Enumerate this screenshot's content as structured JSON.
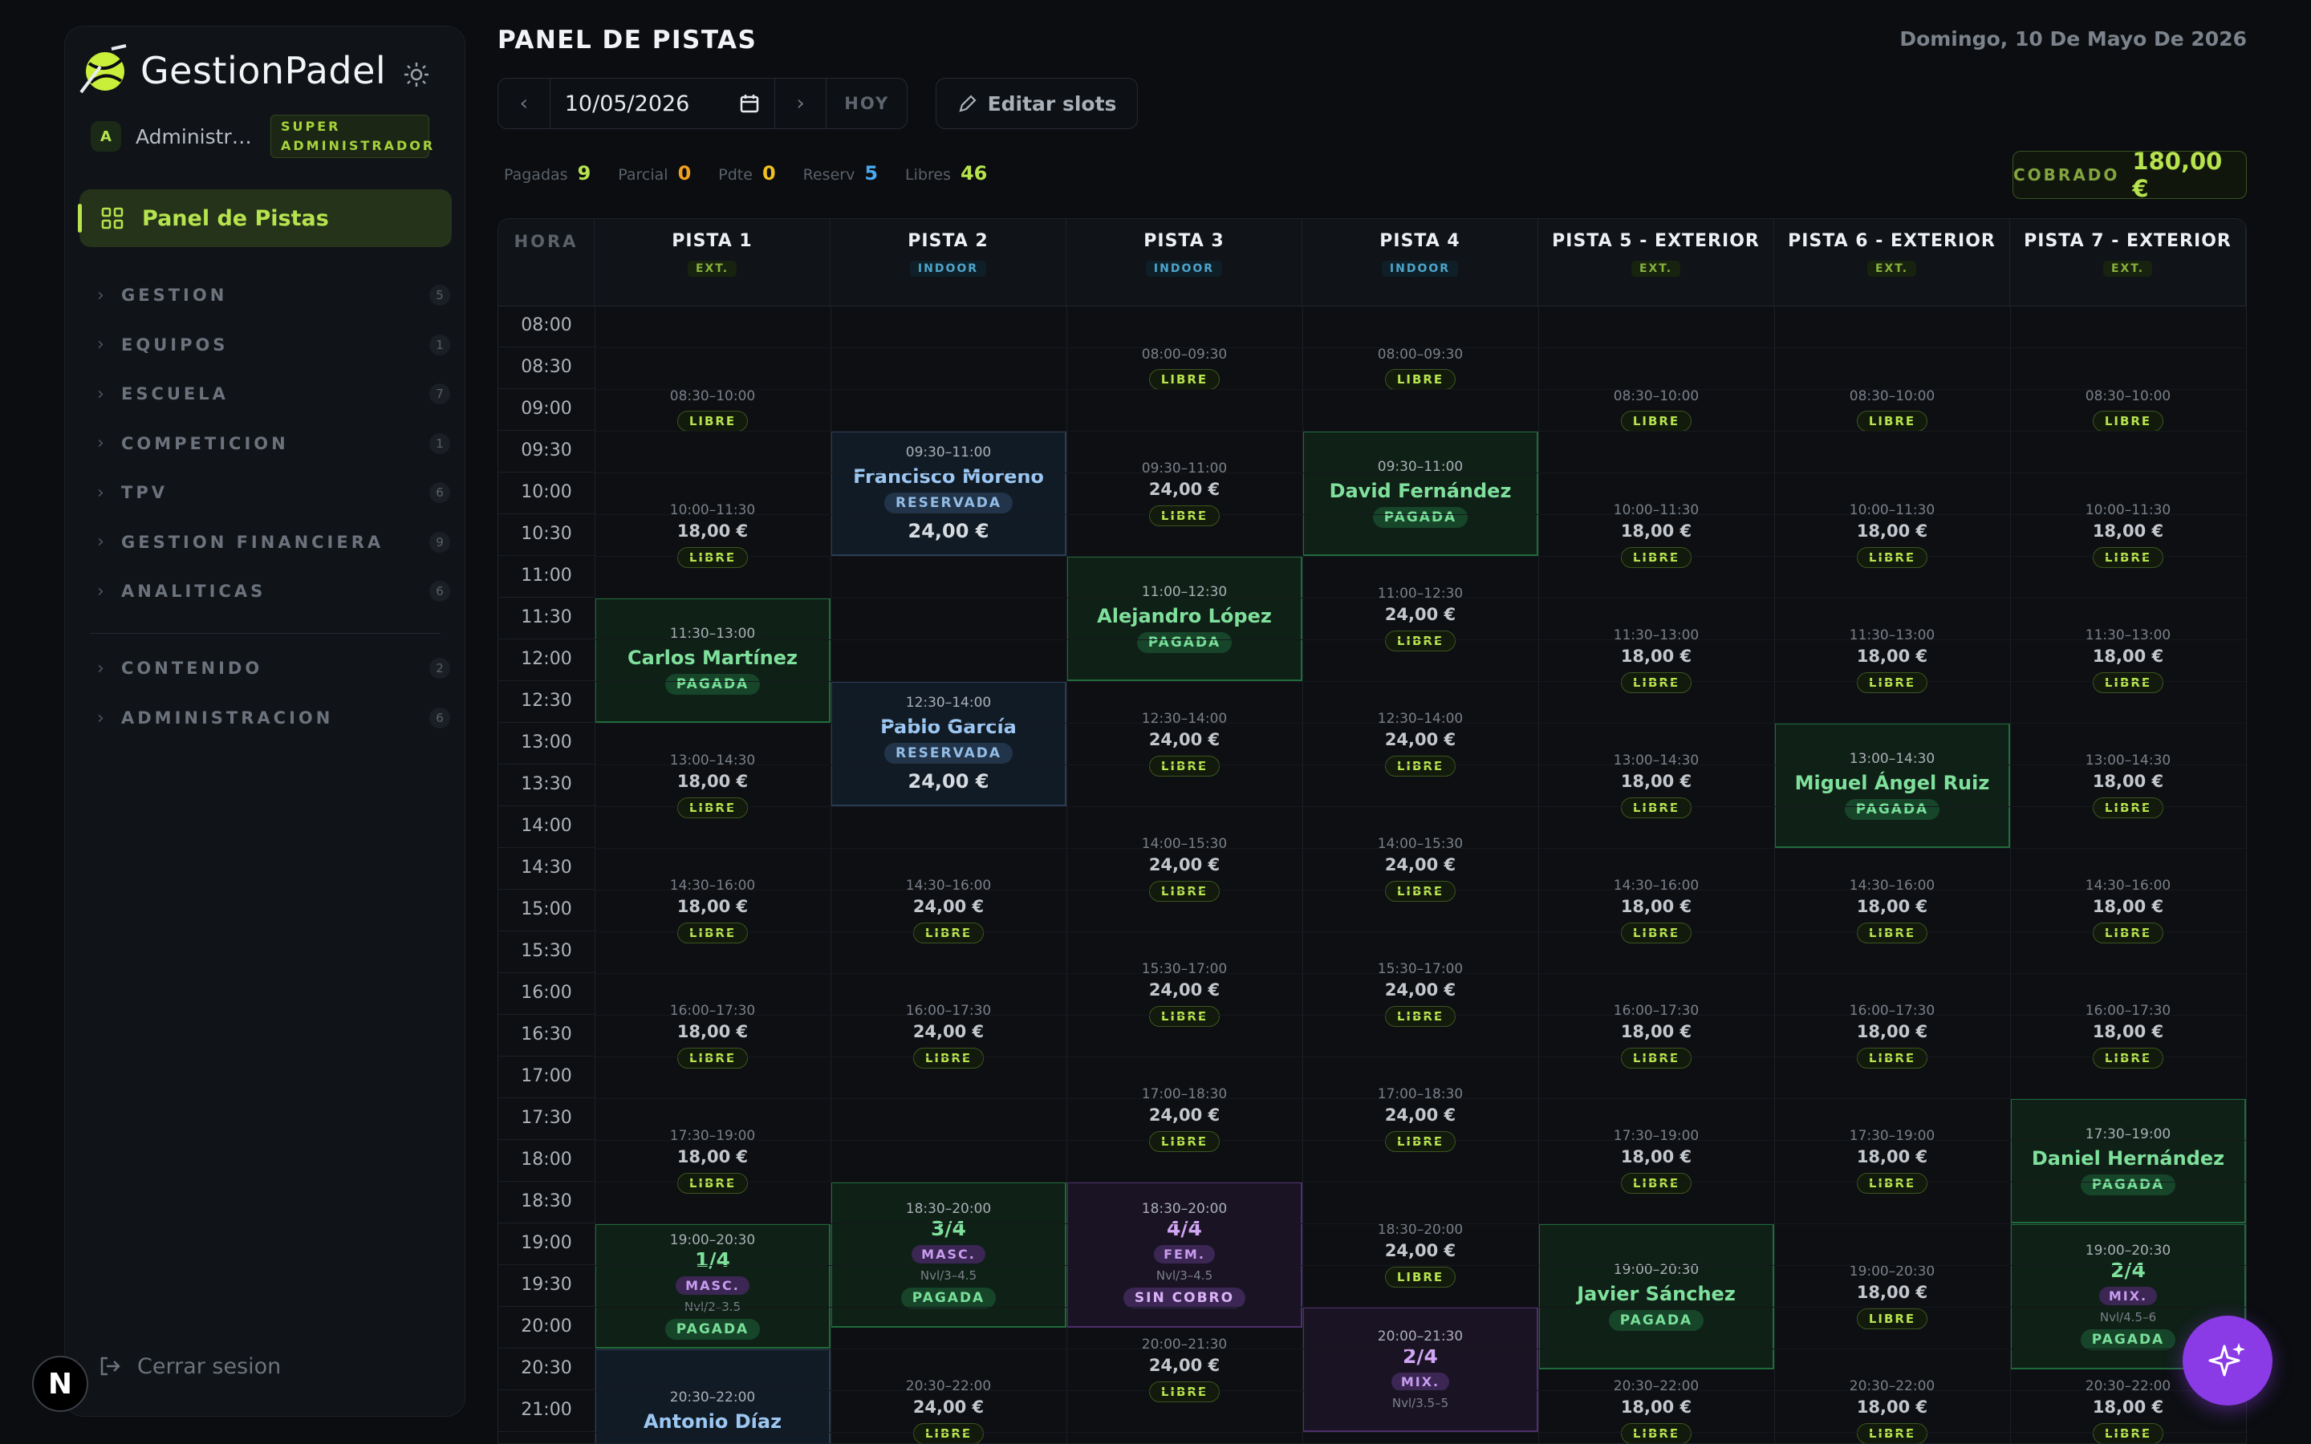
{
  "sidebar": {
    "brand": "GestionPadel",
    "user_initial": "A",
    "user_name": "Administrador",
    "role": "SUPER ADMINISTRADOR",
    "active_item": "Panel de Pistas",
    "groups": [
      {
        "label": "GESTION",
        "count": "5"
      },
      {
        "label": "EQUIPOS",
        "count": "1"
      },
      {
        "label": "ESCUELA",
        "count": "7"
      },
      {
        "label": "COMPETICION",
        "count": "1"
      },
      {
        "label": "TPV",
        "count": "6"
      },
      {
        "label": "GESTION FINANCIERA",
        "count": "9"
      },
      {
        "label": "ANALITICAS",
        "count": "6"
      }
    ],
    "groups2": [
      {
        "label": "CONTENIDO",
        "count": "2"
      },
      {
        "label": "ADMINISTRACION",
        "count": "6"
      }
    ],
    "logout": "Cerrar sesion",
    "n_badge": "N"
  },
  "header": {
    "title": "PANEL DE PISTAS",
    "date_long": "Domingo, 10 De Mayo De 2026",
    "date_value": "10/05/2026",
    "today": "HOY",
    "edit_slots": "Editar slots"
  },
  "stats": [
    {
      "label": "Pagadas",
      "value": "9",
      "color": "#b6e34e"
    },
    {
      "label": "Parcial",
      "value": "0",
      "color": "#f0a020"
    },
    {
      "label": "Pdte",
      "value": "0",
      "color": "#f0c020"
    },
    {
      "label": "Reserv",
      "value": "5",
      "color": "#4aa8f0"
    },
    {
      "label": "Libres",
      "value": "46",
      "color": "#b6e34e"
    }
  ],
  "cobrado": {
    "label": "COBRADO",
    "value": "180,00 €"
  },
  "grid": {
    "hora_label": "HORA",
    "courts": [
      {
        "name": "PISTA 1",
        "type": "EXT."
      },
      {
        "name": "PISTA 2",
        "type": "INDOOR"
      },
      {
        "name": "PISTA 3",
        "type": "INDOOR"
      },
      {
        "name": "PISTA 4",
        "type": "INDOOR"
      },
      {
        "name": "PISTA 5 - EXTERIOR",
        "type": "EXT."
      },
      {
        "name": "PISTA 6 - EXTERIOR",
        "type": "EXT."
      },
      {
        "name": "PISTA 7 - EXTERIOR",
        "type": "EXT."
      }
    ],
    "times": [
      "08:00",
      "08:30",
      "09:00",
      "09:30",
      "10:00",
      "10:30",
      "11:00",
      "11:30",
      "12:00",
      "12:30",
      "13:00",
      "13:30",
      "14:00",
      "14:30",
      "15:00",
      "15:30",
      "16:00",
      "16:30",
      "17:00",
      "17:30",
      "18:00",
      "18:30",
      "19:00",
      "19:30",
      "20:00",
      "20:30",
      "21:00"
    ],
    "slots": [
      {
        "c": 0,
        "s": 1,
        "d": 3,
        "k": "libre",
        "tm": "08:30–10:00"
      },
      {
        "c": 0,
        "s": 4,
        "d": 3,
        "k": "libre",
        "tm": "10:00–11:30",
        "pr": "18,00 €"
      },
      {
        "c": 0,
        "s": 7,
        "d": 3,
        "k": "pagada",
        "tm": "11:30–13:00",
        "nm": "Carlos Martínez",
        "tag": "PAGADA"
      },
      {
        "c": 0,
        "s": 10,
        "d": 3,
        "k": "libre",
        "tm": "13:00–14:30",
        "pr": "18,00 €"
      },
      {
        "c": 0,
        "s": 13,
        "d": 3,
        "k": "libre",
        "tm": "14:30–16:00",
        "pr": "18,00 €"
      },
      {
        "c": 0,
        "s": 16,
        "d": 3,
        "k": "libre",
        "tm": "16:00–17:30",
        "pr": "18,00 €"
      },
      {
        "c": 0,
        "s": 19,
        "d": 3,
        "k": "libre",
        "tm": "17:30–19:00",
        "pr": "18,00 €"
      },
      {
        "c": 0,
        "s": 22,
        "d": 3,
        "k": "partido-g",
        "tm": "19:00–20:30",
        "sc": "1/4",
        "cat": "MASC.",
        "lv": "Nvl/2–3.5",
        "tag": "PAGADA"
      },
      {
        "c": 0,
        "s": 25,
        "d": 3,
        "k": "reserv",
        "tm": "20:30–22:00",
        "nm": "Antonio Díaz"
      },
      {
        "c": 1,
        "s": 3,
        "d": 3,
        "k": "reserv",
        "tm": "09:30–11:00",
        "nm": "Francisco Moreno",
        "tag": "RESERVADA",
        "amt": "24,00 €"
      },
      {
        "c": 1,
        "s": 9,
        "d": 3,
        "k": "reserv",
        "tm": "12:30–14:00",
        "nm": "Pablo García",
        "tag": "RESERVADA",
        "amt": "24,00 €"
      },
      {
        "c": 1,
        "s": 13,
        "d": 3,
        "k": "libre",
        "tm": "14:30–16:00",
        "pr": "24,00 €"
      },
      {
        "c": 1,
        "s": 16,
        "d": 3,
        "k": "libre",
        "tm": "16:00–17:30",
        "pr": "24,00 €"
      },
      {
        "c": 1,
        "s": 21,
        "d": 3.5,
        "k": "partido-g",
        "tm": "18:30–20:00",
        "sc": "3/4",
        "cat": "MASC.",
        "lv": "Nvl/3–4.5",
        "tag": "PAGADA"
      },
      {
        "c": 1,
        "s": 25,
        "d": 3,
        "k": "libre",
        "tm": "20:30–22:00",
        "pr": "24,00 €"
      },
      {
        "c": 2,
        "s": 0,
        "d": 3,
        "k": "libre",
        "tm": "08:00–09:30"
      },
      {
        "c": 2,
        "s": 3,
        "d": 3,
        "k": "libre",
        "tm": "09:30–11:00",
        "pr": "24,00 €"
      },
      {
        "c": 2,
        "s": 6,
        "d": 3,
        "k": "pagada",
        "tm": "11:00–12:30",
        "nm": "Alejandro López",
        "tag": "PAGADA"
      },
      {
        "c": 2,
        "s": 9,
        "d": 3,
        "k": "libre",
        "tm": "12:30–14:00",
        "pr": "24,00 €"
      },
      {
        "c": 2,
        "s": 12,
        "d": 3,
        "k": "libre",
        "tm": "14:00–15:30",
        "pr": "24,00 €"
      },
      {
        "c": 2,
        "s": 15,
        "d": 3,
        "k": "libre",
        "tm": "15:30–17:00",
        "pr": "24,00 €"
      },
      {
        "c": 2,
        "s": 18,
        "d": 3,
        "k": "libre",
        "tm": "17:00–18:30",
        "pr": "24,00 €"
      },
      {
        "c": 2,
        "s": 21,
        "d": 3.5,
        "k": "partido",
        "tm": "18:30–20:00",
        "sc": "4/4",
        "cat": "FEM.",
        "lv": "Nvl/3–4.5",
        "tag": "SIN COBRO"
      },
      {
        "c": 2,
        "s": 24,
        "d": 3,
        "k": "libre",
        "tm": "20:00–21:30",
        "pr": "24,00 €"
      },
      {
        "c": 3,
        "s": 0,
        "d": 3,
        "k": "libre",
        "tm": "08:00–09:30"
      },
      {
        "c": 3,
        "s": 3,
        "d": 3,
        "k": "pagada",
        "tm": "09:30–11:00",
        "nm": "David Fernández",
        "tag": "PAGADA"
      },
      {
        "c": 3,
        "s": 6,
        "d": 3,
        "k": "libre",
        "tm": "11:00–12:30",
        "pr": "24,00 €"
      },
      {
        "c": 3,
        "s": 9,
        "d": 3,
        "k": "libre",
        "tm": "12:30–14:00",
        "pr": "24,00 €"
      },
      {
        "c": 3,
        "s": 12,
        "d": 3,
        "k": "libre",
        "tm": "14:00–15:30",
        "pr": "24,00 €"
      },
      {
        "c": 3,
        "s": 15,
        "d": 3,
        "k": "libre",
        "tm": "15:30–17:00",
        "pr": "24,00 €"
      },
      {
        "c": 3,
        "s": 18,
        "d": 3,
        "k": "libre",
        "tm": "17:00–18:30",
        "pr": "24,00 €"
      },
      {
        "c": 3,
        "s": 21,
        "d": 3.5,
        "k": "libre",
        "tm": "18:30–20:00",
        "pr": "24,00 €"
      },
      {
        "c": 3,
        "s": 24,
        "d": 3,
        "k": "partido",
        "tm": "20:00–21:30",
        "sc": "2/4",
        "cat": "MIX.",
        "lv": "Nvl/3.5–5"
      },
      {
        "c": 4,
        "s": 1,
        "d": 3,
        "k": "libre",
        "tm": "08:30–10:00"
      },
      {
        "c": 4,
        "s": 4,
        "d": 3,
        "k": "libre",
        "tm": "10:00–11:30",
        "pr": "18,00 €"
      },
      {
        "c": 4,
        "s": 7,
        "d": 3,
        "k": "libre",
        "tm": "11:30–13:00",
        "pr": "18,00 €"
      },
      {
        "c": 4,
        "s": 10,
        "d": 3,
        "k": "libre",
        "tm": "13:00–14:30",
        "pr": "18,00 €"
      },
      {
        "c": 4,
        "s": 13,
        "d": 3,
        "k": "libre",
        "tm": "14:30–16:00",
        "pr": "18,00 €"
      },
      {
        "c": 4,
        "s": 16,
        "d": 3,
        "k": "libre",
        "tm": "16:00–17:30",
        "pr": "18,00 €"
      },
      {
        "c": 4,
        "s": 19,
        "d": 3,
        "k": "libre",
        "tm": "17:30–19:00",
        "pr": "18,00 €"
      },
      {
        "c": 4,
        "s": 22,
        "d": 3.5,
        "k": "pagada",
        "tm": "19:00–20:30",
        "nm": "Javier Sánchez",
        "tag": "PAGADA"
      },
      {
        "c": 4,
        "s": 25,
        "d": 3,
        "k": "libre",
        "tm": "20:30–22:00",
        "pr": "18,00 €"
      },
      {
        "c": 5,
        "s": 1,
        "d": 3,
        "k": "libre",
        "tm": "08:30–10:00"
      },
      {
        "c": 5,
        "s": 4,
        "d": 3,
        "k": "libre",
        "tm": "10:00–11:30",
        "pr": "18,00 €"
      },
      {
        "c": 5,
        "s": 7,
        "d": 3,
        "k": "libre",
        "tm": "11:30–13:00",
        "pr": "18,00 €"
      },
      {
        "c": 5,
        "s": 10,
        "d": 3,
        "k": "pagada",
        "tm": "13:00–14:30",
        "nm": "Miguel Ángel Ruiz",
        "tag": "PAGADA"
      },
      {
        "c": 5,
        "s": 13,
        "d": 3,
        "k": "libre",
        "tm": "14:30–16:00",
        "pr": "18,00 €"
      },
      {
        "c": 5,
        "s": 16,
        "d": 3,
        "k": "libre",
        "tm": "16:00–17:30",
        "pr": "18,00 €"
      },
      {
        "c": 5,
        "s": 19,
        "d": 3,
        "k": "libre",
        "tm": "17:30–19:00",
        "pr": "18,00 €"
      },
      {
        "c": 5,
        "s": 22,
        "d": 3.5,
        "k": "libre",
        "tm": "19:00–20:30",
        "pr": "18,00 €"
      },
      {
        "c": 5,
        "s": 25,
        "d": 3,
        "k": "libre",
        "tm": "20:30–22:00",
        "pr": "18,00 €"
      },
      {
        "c": 6,
        "s": 1,
        "d": 3,
        "k": "libre",
        "tm": "08:30–10:00"
      },
      {
        "c": 6,
        "s": 4,
        "d": 3,
        "k": "libre",
        "tm": "10:00–11:30",
        "pr": "18,00 €"
      },
      {
        "c": 6,
        "s": 7,
        "d": 3,
        "k": "libre",
        "tm": "11:30–13:00",
        "pr": "18,00 €"
      },
      {
        "c": 6,
        "s": 10,
        "d": 3,
        "k": "libre",
        "tm": "13:00–14:30",
        "pr": "18,00 €"
      },
      {
        "c": 6,
        "s": 13,
        "d": 3,
        "k": "libre",
        "tm": "14:30–16:00",
        "pr": "18,00 €"
      },
      {
        "c": 6,
        "s": 16,
        "d": 3,
        "k": "libre",
        "tm": "16:00–17:30",
        "pr": "18,00 €"
      },
      {
        "c": 6,
        "s": 19,
        "d": 3,
        "k": "pagada",
        "tm": "17:30–19:00",
        "nm": "Daniel Hernández",
        "tag": "PAGADA"
      },
      {
        "c": 6,
        "s": 22,
        "d": 3.5,
        "k": "partido-g",
        "tm": "19:00–20:30",
        "sc": "2/4",
        "cat": "MIX.",
        "lv": "Nvl/4.5–6",
        "tag": "PAGADA"
      },
      {
        "c": 6,
        "s": 25,
        "d": 3,
        "k": "libre",
        "tm": "20:30–22:00",
        "pr": "18,00 €"
      }
    ],
    "libre_label": "LIBRE"
  }
}
